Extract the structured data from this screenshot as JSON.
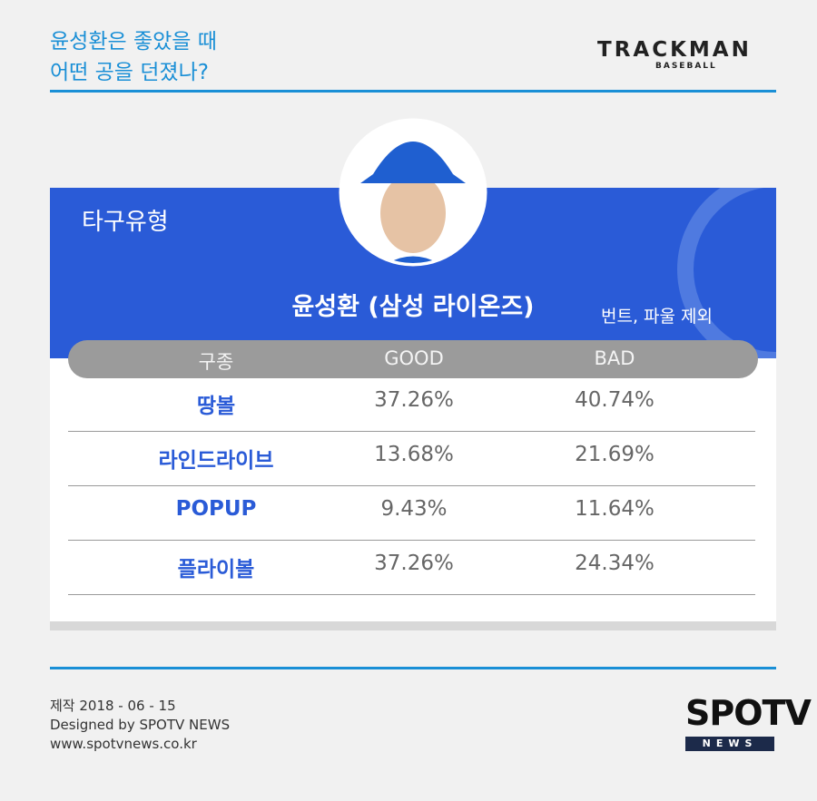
{
  "header": {
    "title": [
      "윤성환은 좋았을 때",
      "어떤 공을 던졌나?"
    ],
    "logo": "TRACKMAN",
    "logo_sub": "BASEBALL"
  },
  "card": {
    "section": "타구유형",
    "player": "윤성환 (삼성 라이온즈)",
    "note": "번트, 파울 제외",
    "table": {
      "headers": [
        "구종",
        "GOOD",
        "BAD"
      ],
      "rows": [
        [
          "땅볼",
          "37.26%",
          "40.74%"
        ],
        [
          "라인드라이브",
          "13.68%",
          "21.69%"
        ],
        [
          "POPUP",
          "9.43%",
          "11.64%"
        ],
        [
          "플라이볼",
          "37.26%",
          "24.34%"
        ]
      ]
    }
  },
  "footer": {
    "lines": [
      "제작 2018 - 06 - 15",
      "Designed by SPOTV NEWS",
      "www.spotvnews.co.kr"
    ],
    "logo": "SPOTV",
    "logo_sub": "NEWS"
  }
}
